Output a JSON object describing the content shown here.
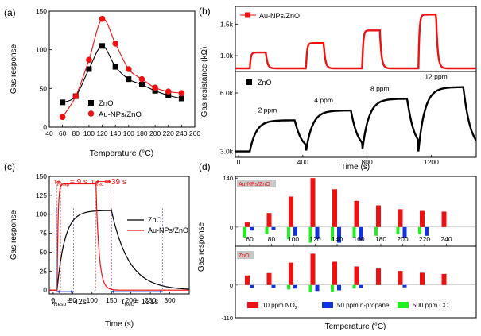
{
  "panels": {
    "a": {
      "label": "(a)"
    },
    "b": {
      "label": "(b)"
    },
    "c": {
      "label": "(c)"
    },
    "d": {
      "label": "(d)"
    }
  },
  "colors": {
    "zno": "#000000",
    "au": "#ee1111",
    "no2": "#ee1111",
    "propane": "#1133dd",
    "co": "#22ee22"
  },
  "chart_data": [
    {
      "id": "a",
      "type": "line",
      "title": "",
      "xlabel": "Temperature (°C)",
      "ylabel": "Gas response",
      "xlim": [
        40,
        260
      ],
      "ylim": [
        0,
        150
      ],
      "xticks": [
        "40",
        "60",
        "80",
        "100",
        "120",
        "140",
        "160",
        "180",
        "200",
        "220",
        "240",
        "260"
      ],
      "yticks": [
        "0",
        "50",
        "100",
        "150"
      ],
      "x": [
        60,
        80,
        100,
        120,
        140,
        160,
        180,
        200,
        220,
        240
      ],
      "series": [
        {
          "name": "ZnO",
          "marker": "square",
          "values": [
            32,
            40,
            75,
            105,
            78,
            62,
            55,
            47,
            41,
            37
          ]
        },
        {
          "name": "Au-NPs/ZnO",
          "marker": "circle",
          "values": [
            13,
            40,
            87,
            140,
            108,
            75,
            62,
            51,
            46,
            44
          ]
        }
      ]
    },
    {
      "id": "b",
      "type": "line",
      "title": "",
      "xlabel": "Time (s)",
      "ylabel": "Gas resistance (kΩ)",
      "xlim": [
        -20,
        1480
      ],
      "xticks": [
        "0",
        "400",
        "800",
        "1200"
      ],
      "top": {
        "series": [
          {
            "name": "Au-NPs/ZnO",
            "marker": "square"
          }
        ],
        "yticks": [
          "1.0k",
          "1.5k"
        ],
        "ylim": [
          0.75,
          1.78
        ],
        "baseline": 0.8,
        "pulses": [
          {
            "start": 70,
            "end": 170,
            "peak": 1.05
          },
          {
            "start": 420,
            "end": 530,
            "peak": 1.2
          },
          {
            "start": 770,
            "end": 880,
            "peak": 1.4
          },
          {
            "start": 1120,
            "end": 1230,
            "peak": 1.65
          }
        ]
      },
      "bottom": {
        "series": [
          {
            "name": "ZnO",
            "marker": "square"
          }
        ],
        "yticks": [
          "3.0k",
          "6.0k"
        ],
        "ylim": [
          2.7,
          7.1
        ],
        "baseline": 3.0,
        "pulses": [
          {
            "start": 70,
            "end": 350,
            "peak": 4.6,
            "label": "2 ppm"
          },
          {
            "start": 420,
            "end": 700,
            "peak": 5.1,
            "label": "4 ppm"
          },
          {
            "start": 770,
            "end": 1050,
            "peak": 5.7,
            "label": "8 ppm"
          },
          {
            "start": 1120,
            "end": 1400,
            "peak": 6.3,
            "label": "12 ppm"
          }
        ]
      }
    },
    {
      "id": "c",
      "type": "line",
      "title": "",
      "xlabel": "Time (s)",
      "ylabel": "Gas response",
      "xlim": [
        -10,
        350
      ],
      "ylim": [
        -5,
        150
      ],
      "xticks": [
        "0",
        "50",
        "100",
        "150",
        "200",
        "250",
        "300"
      ],
      "yticks": [
        "0",
        "25",
        "50",
        "75",
        "100",
        "125",
        "150"
      ],
      "series": [
        {
          "name": "ZnO",
          "on": 10,
          "off": 150,
          "plateau": 105,
          "rise_tau": 20,
          "decay_tau": 45
        },
        {
          "name": "Au-NPs/ZnO",
          "on": 10,
          "off": 110,
          "plateau": 140,
          "rise_tau": 2.5,
          "decay_tau": 8
        }
      ],
      "annotations": {
        "au_resp": {
          "sub": "Resp",
          "value": "= 9 s"
        },
        "au_rec": {
          "sub": "Rec",
          "value": "= 39 s"
        },
        "zno_resp": {
          "sub": "Resp",
          "value": "= 42s"
        },
        "zno_rec": {
          "sub": "Rec",
          "value": "= 131s"
        },
        "tau": "τ"
      }
    },
    {
      "id": "d",
      "type": "bar",
      "title": "",
      "xlabel": "Temperature (°C)",
      "ylabel": "Gas response",
      "categories": [
        "60",
        "80",
        "100",
        "120",
        "140",
        "160",
        "180",
        "200",
        "220",
        "240"
      ],
      "top_label": "Au-NPs/ZnO",
      "bottom_label": "ZnO",
      "yticks": [
        "140",
        "0",
        "-110"
      ],
      "ylim_top": [
        -55,
        145
      ],
      "ylim_bottom": [
        -110,
        130
      ],
      "series_names": [
        {
          "prefix": "10 ppm NO",
          "sub": "2"
        },
        {
          "prefix": "50 ppm n-propane",
          "sub": ""
        },
        {
          "prefix": "500 ppm CO",
          "sub": ""
        }
      ],
      "top": {
        "no2": [
          13,
          40,
          87,
          140,
          108,
          75,
          62,
          51,
          46,
          44
        ],
        "propane": [
          -10,
          -8,
          -25,
          -35,
          -45,
          -38,
          0,
          -30,
          -25,
          0
        ],
        "co": [
          -30,
          -20,
          -35,
          -45,
          -40,
          -30,
          -25,
          -20,
          -20,
          0
        ]
      },
      "bottom": {
        "no2": [
          32,
          40,
          75,
          105,
          78,
          62,
          55,
          47,
          41,
          37
        ],
        "propane": [
          -10,
          -10,
          -12,
          -20,
          -18,
          -10,
          0,
          -8,
          0,
          0
        ],
        "co": [
          0,
          0,
          -15,
          -25,
          -22,
          -12,
          0,
          0,
          0,
          0
        ]
      }
    }
  ]
}
